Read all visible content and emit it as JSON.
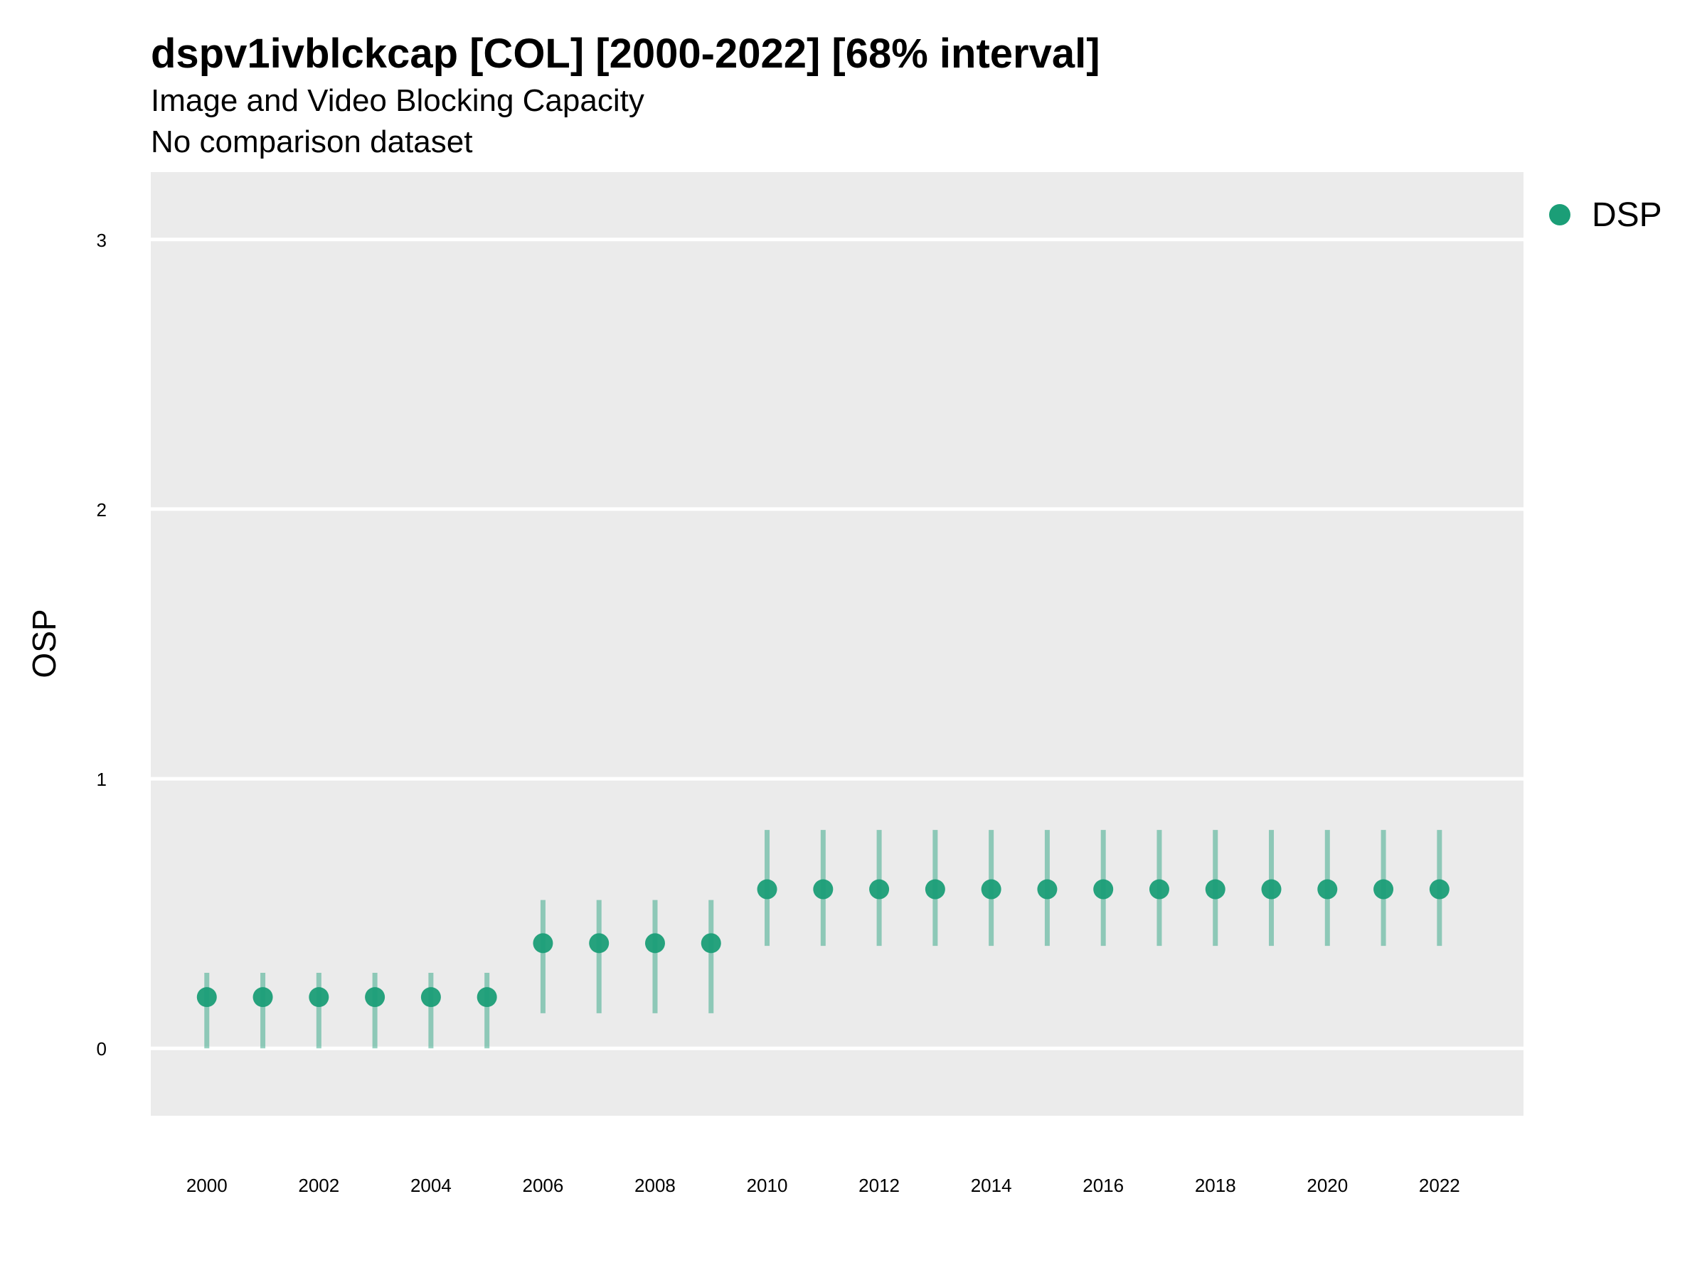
{
  "chart_data": {
    "type": "scatter",
    "title": "dspv1ivblckcap [COL] [2000-2022] [68% interval]",
    "subtitle": "Image and Video Blocking Capacity",
    "subtitle2": "No comparison dataset",
    "ylabel": "OSP",
    "xlabel": "",
    "xlim": [
      1999,
      2023.5
    ],
    "ylim": [
      -0.25,
      3.25
    ],
    "x_ticks": [
      2000,
      2002,
      2004,
      2006,
      2008,
      2010,
      2012,
      2014,
      2016,
      2018,
      2020,
      2022
    ],
    "y_ticks": [
      0,
      1,
      2,
      3
    ],
    "grid": true,
    "legend_position": "top-right",
    "colors": {
      "panel": "#ebebeb",
      "point": "#1b9e77",
      "gridline": "#ffffff"
    },
    "series": [
      {
        "name": "DSP",
        "points": [
          {
            "x": 2000,
            "y": 0.19,
            "lo": 0.0,
            "hi": 0.28
          },
          {
            "x": 2001,
            "y": 0.19,
            "lo": 0.0,
            "hi": 0.28
          },
          {
            "x": 2002,
            "y": 0.19,
            "lo": 0.0,
            "hi": 0.28
          },
          {
            "x": 2003,
            "y": 0.19,
            "lo": 0.0,
            "hi": 0.28
          },
          {
            "x": 2004,
            "y": 0.19,
            "lo": 0.0,
            "hi": 0.28
          },
          {
            "x": 2005,
            "y": 0.19,
            "lo": 0.0,
            "hi": 0.28
          },
          {
            "x": 2006,
            "y": 0.39,
            "lo": 0.13,
            "hi": 0.55
          },
          {
            "x": 2007,
            "y": 0.39,
            "lo": 0.13,
            "hi": 0.55
          },
          {
            "x": 2008,
            "y": 0.39,
            "lo": 0.13,
            "hi": 0.55
          },
          {
            "x": 2009,
            "y": 0.39,
            "lo": 0.13,
            "hi": 0.55
          },
          {
            "x": 2010,
            "y": 0.59,
            "lo": 0.38,
            "hi": 0.81
          },
          {
            "x": 2011,
            "y": 0.59,
            "lo": 0.38,
            "hi": 0.81
          },
          {
            "x": 2012,
            "y": 0.59,
            "lo": 0.38,
            "hi": 0.81
          },
          {
            "x": 2013,
            "y": 0.59,
            "lo": 0.38,
            "hi": 0.81
          },
          {
            "x": 2014,
            "y": 0.59,
            "lo": 0.38,
            "hi": 0.81
          },
          {
            "x": 2015,
            "y": 0.59,
            "lo": 0.38,
            "hi": 0.81
          },
          {
            "x": 2016,
            "y": 0.59,
            "lo": 0.38,
            "hi": 0.81
          },
          {
            "x": 2017,
            "y": 0.59,
            "lo": 0.38,
            "hi": 0.81
          },
          {
            "x": 2018,
            "y": 0.59,
            "lo": 0.38,
            "hi": 0.81
          },
          {
            "x": 2019,
            "y": 0.59,
            "lo": 0.38,
            "hi": 0.81
          },
          {
            "x": 2020,
            "y": 0.59,
            "lo": 0.38,
            "hi": 0.81
          },
          {
            "x": 2021,
            "y": 0.59,
            "lo": 0.38,
            "hi": 0.81
          },
          {
            "x": 2022,
            "y": 0.59,
            "lo": 0.38,
            "hi": 0.81
          }
        ]
      }
    ]
  }
}
